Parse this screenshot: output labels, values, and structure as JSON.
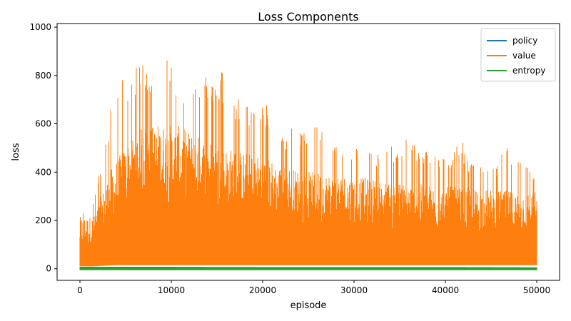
{
  "chart_data": {
    "type": "line",
    "title": "Loss Components",
    "xlabel": "episode",
    "ylabel": "loss",
    "xlim": [
      -2500,
      52500
    ],
    "ylim": [
      -48,
      1015
    ],
    "xticks": [
      0,
      10000,
      20000,
      30000,
      40000,
      50000
    ],
    "yticks": [
      0,
      200,
      400,
      600,
      800,
      1000
    ],
    "grid": false,
    "legend_position": "top-right",
    "series": [
      {
        "name": "policy",
        "color": "#1f77b4",
        "style": "dense-noisy",
        "x": [
          0,
          10000,
          20000,
          30000,
          40000,
          50000
        ],
        "low": [
          -1,
          -1,
          -1,
          -1,
          -1,
          -1
        ],
        "high": [
          1,
          1,
          1,
          1,
          1,
          1
        ]
      },
      {
        "name": "value",
        "color": "#ff7f0e",
        "style": "dense-noisy",
        "x": [
          0,
          1500,
          2500,
          3500,
          4500,
          5500,
          6500,
          7500,
          8500,
          9500,
          10500,
          11500,
          12500,
          13500,
          14500,
          15500,
          16500,
          17500,
          18500,
          19500,
          20500,
          21500,
          22500,
          23500,
          24500,
          25500,
          26500,
          27500,
          28500,
          29500,
          30500,
          31500,
          32500,
          33500,
          34500,
          35500,
          36500,
          37500,
          38500,
          39500,
          40500,
          41500,
          42500,
          43500,
          44500,
          45500,
          46500,
          47500,
          48500,
          49500,
          50000
        ],
        "low": [
          10,
          10,
          12,
          14,
          15,
          15,
          15,
          15,
          15,
          15,
          15,
          15,
          15,
          15,
          15,
          15,
          15,
          15,
          15,
          15,
          15,
          15,
          15,
          15,
          15,
          15,
          15,
          15,
          15,
          15,
          15,
          15,
          15,
          15,
          15,
          15,
          15,
          15,
          15,
          15,
          15,
          15,
          15,
          15,
          15,
          15,
          15,
          15,
          15,
          15,
          15
        ],
        "body": [
          215,
          215,
          320,
          420,
          480,
          540,
          580,
          590,
          600,
          600,
          595,
          580,
          560,
          545,
          530,
          510,
          500,
          490,
          480,
          470,
          460,
          440,
          425,
          415,
          410,
          400,
          400,
          395,
          390,
          385,
          380,
          375,
          370,
          360,
          360,
          355,
          350,
          350,
          345,
          340,
          340,
          335,
          335,
          330,
          330,
          325,
          325,
          320,
          320,
          320,
          320
        ],
        "peak": [
          215,
          285,
          490,
          700,
          850,
          740,
          878,
          830,
          870,
          972,
          740,
          730,
          770,
          840,
          760,
          855,
          680,
          720,
          680,
          680,
          685,
          625,
          540,
          610,
          560,
          640,
          600,
          530,
          540,
          510,
          500,
          500,
          470,
          545,
          480,
          565,
          525,
          485,
          500,
          470,
          440,
          585,
          440,
          435,
          470,
          405,
          560,
          440,
          460,
          390,
          380
        ]
      },
      {
        "name": "entropy",
        "color": "#2ca02c",
        "style": "dense-noisy",
        "x": [
          0,
          10000,
          20000,
          30000,
          40000,
          50000
        ],
        "low": [
          -6,
          -6,
          -6,
          -6,
          -6,
          -6
        ],
        "high": [
          8,
          8,
          7,
          7,
          7,
          6
        ]
      }
    ]
  }
}
